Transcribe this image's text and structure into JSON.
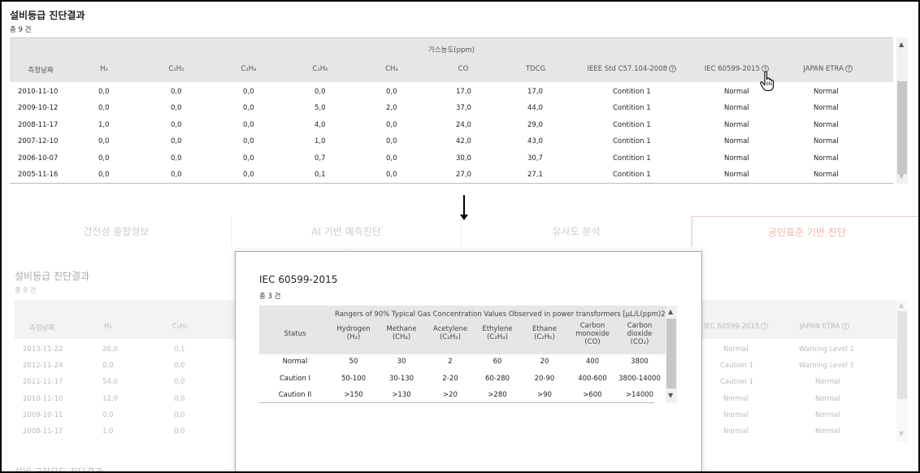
{
  "top": {
    "title": "설비등급 진단결과",
    "count": "총 9 건",
    "gas_label": "가스농도(ppm)",
    "columns": [
      "측정날짜",
      "H₂",
      "C₂H₂",
      "C₂H₄",
      "C₂H₆",
      "CH₄",
      "CO",
      "TDCG",
      "IEEE Std C57.104-2008",
      "IEC 60599-2015",
      "JAPAN ETRA"
    ],
    "help_icon": "?",
    "rows": [
      [
        "2010-11-10",
        "0,0",
        "0,0",
        "0,0",
        "0,0",
        "0,0",
        "17,0",
        "17,0",
        "Contition 1",
        "Normal",
        "Normal"
      ],
      [
        "2009-10-12",
        "0,0",
        "0,0",
        "0,0",
        "5,0",
        "2,0",
        "37,0",
        "44,0",
        "Contition 1",
        "Normal",
        "Normal"
      ],
      [
        "2008-11-17",
        "1,0",
        "0,0",
        "0,0",
        "4,0",
        "0,0",
        "24,0",
        "29,0",
        "Contition 1",
        "Normal",
        "Normal"
      ],
      [
        "2007-12-10",
        "0,0",
        "0,0",
        "0,0",
        "1,0",
        "0,0",
        "42,0",
        "43,0",
        "Contition 1",
        "Normal",
        "Normal"
      ],
      [
        "2006-10-07",
        "0,0",
        "0,0",
        "0,0",
        "0,7",
        "0,0",
        "30,0",
        "30,7",
        "Contition 1",
        "Normal",
        "Normal"
      ],
      [
        "2005-11-16",
        "0,0",
        "0,0",
        "0,0",
        "0,1",
        "0,0",
        "27,0",
        "27,1",
        "Contition 1",
        "Normal",
        "Normal"
      ]
    ],
    "scroll_up": "▲",
    "scroll_down": "▼"
  },
  "tabs": [
    "건전성 종합정보",
    "AI 기반 예측진단",
    "유사도 분석",
    "공인표준 기반 진단"
  ],
  "background": {
    "title": "설비등급 진단결과",
    "count": "총 9 건",
    "columns": [
      "측정날짜",
      "H₂",
      "C₂H₂"
    ],
    "right_columns": [
      "IEC 60599-2015",
      "JAPAN ETRA"
    ],
    "rows": [
      [
        "2013-11-22",
        "26,0",
        "0,1",
        "Normal",
        "Warning Level 1"
      ],
      [
        "2012-11-24",
        "0,0",
        "0,0",
        "Caution 1",
        "Warning Level 1"
      ],
      [
        "2011-11-17",
        "54,0",
        "0,0",
        "Caution 1",
        "Normal"
      ],
      [
        "2010-11-10",
        "12,0",
        "0,0",
        "Normal",
        "Normal"
      ],
      [
        "2009-10-11",
        "0,0",
        "0,0",
        "Normal",
        "Normal"
      ],
      [
        "2008-11-17",
        "1,0",
        "0,0",
        "Normal",
        "Normal"
      ]
    ],
    "footer": "설비 고장모드 진단결과"
  },
  "popup": {
    "title": "IEC 60599-2015",
    "count": "총 3 건",
    "sup_header": "Rangers of 90% Typical Gas Concentration Values Observed in power transformers [μL/L(ppm)2]",
    "columns": [
      {
        "l1": "Status",
        "l2": "",
        "l3": ""
      },
      {
        "l1": "Hydrogen",
        "l2": "(H₂)",
        "l3": ""
      },
      {
        "l1": "Methane",
        "l2": "(CH₄)",
        "l3": ""
      },
      {
        "l1": "Acetylene",
        "l2": "(C₂H₂)",
        "l3": ""
      },
      {
        "l1": "Ethylene",
        "l2": "(C₂H₄)",
        "l3": ""
      },
      {
        "l1": "Ethane",
        "l2": "(C₂H₆)",
        "l3": ""
      },
      {
        "l1": "Carbon",
        "l2": "monoxide",
        "l3": "(CO)"
      },
      {
        "l1": "Carbon",
        "l2": "dioxide",
        "l3": "(CO₂)"
      }
    ],
    "rows": [
      [
        "Normal",
        "50",
        "30",
        "2",
        "60",
        "20",
        "400",
        "3800"
      ],
      [
        "Caution I",
        "50-100",
        "30-130",
        "2-20",
        "60-280",
        "20-90",
        "400-600",
        "3800-14000"
      ],
      [
        "Caution II",
        ">150",
        ">130",
        ">20",
        ">280",
        ">90",
        ">600",
        ">14000"
      ]
    ]
  },
  "icons": {
    "cursor": "hand-pointer-icon",
    "arrow": "down-arrow-icon"
  }
}
